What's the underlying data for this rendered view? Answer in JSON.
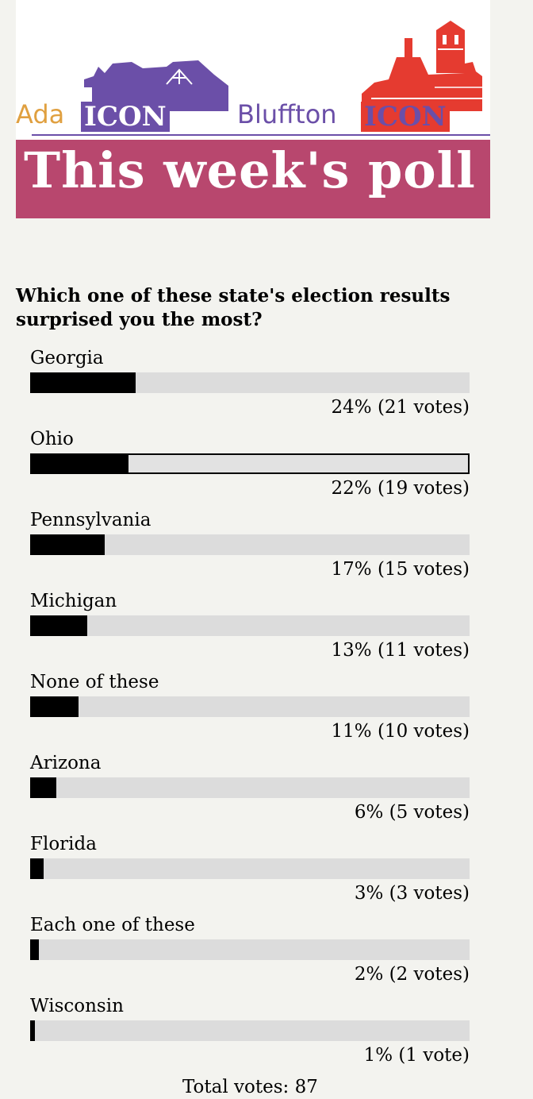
{
  "banner": {
    "ada_word": "Ada",
    "ada_icon": "ICON",
    "bluffton_word": "Bluffton",
    "bluffton_icon": "ICON",
    "title": "This week's poll",
    "colors": {
      "purple": "#6b4fa8",
      "red": "#e53b30",
      "orange": "#e0a040",
      "title_bg": "#b8476e"
    }
  },
  "poll": {
    "question": "Which one of these state's election results surprised you the most?",
    "options": [
      {
        "label": "Georgia",
        "percent": 24,
        "result": "24% (21 votes)",
        "selected": false
      },
      {
        "label": "Ohio",
        "percent": 22,
        "result": "22% (19 votes)",
        "selected": true
      },
      {
        "label": "Pennsylvania",
        "percent": 17,
        "result": "17% (15 votes)",
        "selected": false
      },
      {
        "label": "Michigan",
        "percent": 13,
        "result": "13% (11 votes)",
        "selected": false
      },
      {
        "label": "None of these",
        "percent": 11,
        "result": "11% (10 votes)",
        "selected": false
      },
      {
        "label": "Arizona",
        "percent": 6,
        "result": "6% (5 votes)",
        "selected": false
      },
      {
        "label": "Florida",
        "percent": 3,
        "result": "3% (3 votes)",
        "selected": false
      },
      {
        "label": "Each one of these",
        "percent": 2,
        "result": "2% (2 votes)",
        "selected": false
      },
      {
        "label": "Wisconsin",
        "percent": 1,
        "result": "1% (1 vote)",
        "selected": false
      }
    ],
    "total": "Total votes: 87"
  }
}
